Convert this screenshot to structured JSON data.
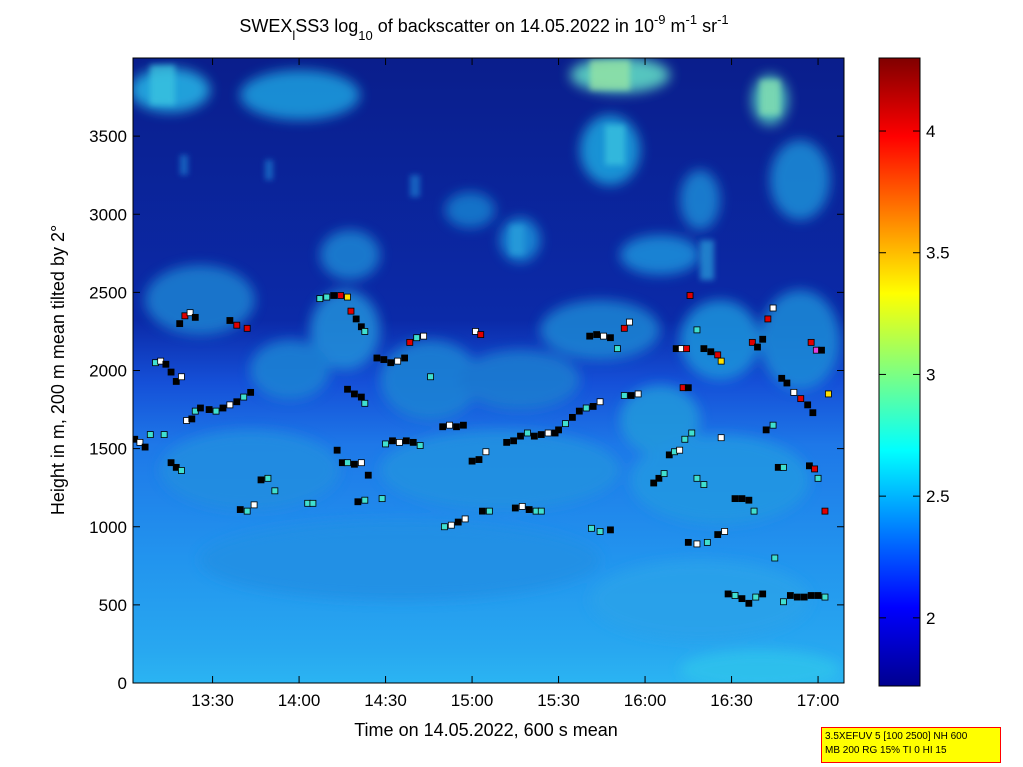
{
  "chart_data": {
    "type": "heatmap",
    "title": {
      "prefix": "SWEX",
      "sub1": "l",
      "mid1": "SS3 log",
      "sub2": "10",
      "mid2": " of backscatter on 14.05.2022 in 10",
      "sup1": "-9",
      "mid3": " m",
      "sup2": "-1",
      "mid4": " sr",
      "sup3": "-1"
    },
    "xlabel": "Time on 14.05.2022, 600 s mean",
    "ylabel": "Height in m, 200 m mean tilted by 2°",
    "x_ticks": [
      "13:30",
      "14:00",
      "14:30",
      "15:00",
      "15:30",
      "16:00",
      "16:30",
      "17:00"
    ],
    "x_tick_hours": [
      13.5,
      14.0,
      14.5,
      15.0,
      15.5,
      16.0,
      16.5,
      17.0
    ],
    "xlim_hours": [
      13.04,
      17.15
    ],
    "y_ticks": [
      0,
      500,
      1000,
      1500,
      2000,
      2500,
      3000,
      3500
    ],
    "ylim": [
      0,
      4000
    ],
    "colorbar": {
      "ticks": [
        2,
        2.5,
        3,
        3.5,
        4
      ],
      "labels": [
        "2",
        "2.5",
        "3",
        "3.5",
        "4"
      ],
      "range": [
        1.72,
        4.3
      ],
      "colormap": "jet"
    },
    "cloud_base_markers": [
      {
        "t": 13.05,
        "h": 1560,
        "c": "black"
      },
      {
        "t": 13.08,
        "h": 1540,
        "c": "white"
      },
      {
        "t": 13.11,
        "h": 1510,
        "c": "black"
      },
      {
        "t": 13.14,
        "h": 1590,
        "c": "cyan"
      },
      {
        "t": 13.17,
        "h": 2050,
        "c": "cyan"
      },
      {
        "t": 13.2,
        "h": 2060,
        "c": "white"
      },
      {
        "t": 13.23,
        "h": 2040,
        "c": "black"
      },
      {
        "t": 13.26,
        "h": 1990,
        "c": "black"
      },
      {
        "t": 13.29,
        "h": 1930,
        "c": "black"
      },
      {
        "t": 13.32,
        "h": 1960,
        "c": "white"
      },
      {
        "t": 13.22,
        "h": 1590,
        "c": "cyan"
      },
      {
        "t": 13.26,
        "h": 1410,
        "c": "black"
      },
      {
        "t": 13.29,
        "h": 1380,
        "c": "black"
      },
      {
        "t": 13.32,
        "h": 1360,
        "c": "cyan"
      },
      {
        "t": 13.35,
        "h": 1680,
        "c": "white"
      },
      {
        "t": 13.38,
        "h": 1690,
        "c": "black"
      },
      {
        "t": 13.4,
        "h": 1740,
        "c": "cyan"
      },
      {
        "t": 13.43,
        "h": 1760,
        "c": "black"
      },
      {
        "t": 13.31,
        "h": 2300,
        "c": "black"
      },
      {
        "t": 13.34,
        "h": 2350,
        "c": "red"
      },
      {
        "t": 13.37,
        "h": 2370,
        "c": "white"
      },
      {
        "t": 13.4,
        "h": 2340,
        "c": "black"
      },
      {
        "t": 13.48,
        "h": 1750,
        "c": "black"
      },
      {
        "t": 13.52,
        "h": 1740,
        "c": "cyan"
      },
      {
        "t": 13.56,
        "h": 1760,
        "c": "black"
      },
      {
        "t": 13.6,
        "h": 1780,
        "c": "white"
      },
      {
        "t": 13.64,
        "h": 1800,
        "c": "black"
      },
      {
        "t": 13.68,
        "h": 1830,
        "c": "cyan"
      },
      {
        "t": 13.72,
        "h": 1860,
        "c": "black"
      },
      {
        "t": 13.6,
        "h": 2320,
        "c": "black"
      },
      {
        "t": 13.64,
        "h": 2290,
        "c": "red"
      },
      {
        "t": 13.7,
        "h": 2270,
        "c": "red"
      },
      {
        "t": 13.66,
        "h": 1110,
        "c": "black"
      },
      {
        "t": 13.7,
        "h": 1100,
        "c": "cyan"
      },
      {
        "t": 13.74,
        "h": 1140,
        "c": "white"
      },
      {
        "t": 13.78,
        "h": 1300,
        "c": "black"
      },
      {
        "t": 13.82,
        "h": 1310,
        "c": "cyan"
      },
      {
        "t": 13.86,
        "h": 1230,
        "c": "cyan"
      },
      {
        "t": 14.05,
        "h": 1150,
        "c": "cyan"
      },
      {
        "t": 14.08,
        "h": 1150,
        "c": "cyan"
      },
      {
        "t": 14.12,
        "h": 2460,
        "c": "cyan"
      },
      {
        "t": 14.16,
        "h": 2470,
        "c": "cyan"
      },
      {
        "t": 14.2,
        "h": 2480,
        "c": "black"
      },
      {
        "t": 14.24,
        "h": 2480,
        "c": "red"
      },
      {
        "t": 14.28,
        "h": 2470,
        "c": "yellow"
      },
      {
        "t": 14.3,
        "h": 2380,
        "c": "red"
      },
      {
        "t": 14.33,
        "h": 2330,
        "c": "black"
      },
      {
        "t": 14.36,
        "h": 2280,
        "c": "black"
      },
      {
        "t": 14.38,
        "h": 2250,
        "c": "cyan"
      },
      {
        "t": 14.22,
        "h": 1490,
        "c": "black"
      },
      {
        "t": 14.25,
        "h": 1410,
        "c": "black"
      },
      {
        "t": 14.28,
        "h": 1410,
        "c": "cyan"
      },
      {
        "t": 14.32,
        "h": 1400,
        "c": "black"
      },
      {
        "t": 14.36,
        "h": 1410,
        "c": "white"
      },
      {
        "t": 14.4,
        "h": 1330,
        "c": "black"
      },
      {
        "t": 14.28,
        "h": 1880,
        "c": "black"
      },
      {
        "t": 14.32,
        "h": 1850,
        "c": "black"
      },
      {
        "t": 14.36,
        "h": 1830,
        "c": "black"
      },
      {
        "t": 14.38,
        "h": 1790,
        "c": "cyan"
      },
      {
        "t": 14.34,
        "h": 1160,
        "c": "black"
      },
      {
        "t": 14.38,
        "h": 1170,
        "c": "cyan"
      },
      {
        "t": 14.48,
        "h": 1180,
        "c": "cyan"
      },
      {
        "t": 14.45,
        "h": 2080,
        "c": "black"
      },
      {
        "t": 14.49,
        "h": 2070,
        "c": "black"
      },
      {
        "t": 14.53,
        "h": 2050,
        "c": "black"
      },
      {
        "t": 14.57,
        "h": 2060,
        "c": "white"
      },
      {
        "t": 14.61,
        "h": 2080,
        "c": "black"
      },
      {
        "t": 14.64,
        "h": 2180,
        "c": "red"
      },
      {
        "t": 14.68,
        "h": 2210,
        "c": "cyan"
      },
      {
        "t": 14.72,
        "h": 2220,
        "c": "white"
      },
      {
        "t": 14.5,
        "h": 1530,
        "c": "cyan"
      },
      {
        "t": 14.54,
        "h": 1550,
        "c": "black"
      },
      {
        "t": 14.58,
        "h": 1540,
        "c": "white"
      },
      {
        "t": 14.62,
        "h": 1550,
        "c": "black"
      },
      {
        "t": 14.66,
        "h": 1540,
        "c": "black"
      },
      {
        "t": 14.7,
        "h": 1520,
        "c": "cyan"
      },
      {
        "t": 14.76,
        "h": 1960,
        "c": "cyan"
      },
      {
        "t": 14.83,
        "h": 1640,
        "c": "black"
      },
      {
        "t": 14.87,
        "h": 1650,
        "c": "white"
      },
      {
        "t": 14.91,
        "h": 1640,
        "c": "black"
      },
      {
        "t": 14.95,
        "h": 1650,
        "c": "black"
      },
      {
        "t": 14.84,
        "h": 1000,
        "c": "cyan"
      },
      {
        "t": 14.88,
        "h": 1010,
        "c": "white"
      },
      {
        "t": 14.92,
        "h": 1030,
        "c": "black"
      },
      {
        "t": 14.96,
        "h": 1050,
        "c": "white"
      },
      {
        "t": 15.02,
        "h": 2250,
        "c": "white"
      },
      {
        "t": 15.05,
        "h": 2230,
        "c": "red"
      },
      {
        "t": 15.0,
        "h": 1420,
        "c": "black"
      },
      {
        "t": 15.04,
        "h": 1430,
        "c": "black"
      },
      {
        "t": 15.08,
        "h": 1480,
        "c": "white"
      },
      {
        "t": 15.06,
        "h": 1100,
        "c": "black"
      },
      {
        "t": 15.1,
        "h": 1100,
        "c": "cyan"
      },
      {
        "t": 15.2,
        "h": 1540,
        "c": "black"
      },
      {
        "t": 15.24,
        "h": 1550,
        "c": "black"
      },
      {
        "t": 15.28,
        "h": 1580,
        "c": "black"
      },
      {
        "t": 15.32,
        "h": 1600,
        "c": "cyan"
      },
      {
        "t": 15.36,
        "h": 1580,
        "c": "black"
      },
      {
        "t": 15.4,
        "h": 1590,
        "c": "black"
      },
      {
        "t": 15.44,
        "h": 1600,
        "c": "white"
      },
      {
        "t": 15.48,
        "h": 1600,
        "c": "black"
      },
      {
        "t": 15.25,
        "h": 1120,
        "c": "black"
      },
      {
        "t": 15.29,
        "h": 1130,
        "c": "white"
      },
      {
        "t": 15.33,
        "h": 1110,
        "c": "black"
      },
      {
        "t": 15.37,
        "h": 1100,
        "c": "cyan"
      },
      {
        "t": 15.4,
        "h": 1100,
        "c": "cyan"
      },
      {
        "t": 15.5,
        "h": 1620,
        "c": "black"
      },
      {
        "t": 15.54,
        "h": 1660,
        "c": "cyan"
      },
      {
        "t": 15.58,
        "h": 1700,
        "c": "black"
      },
      {
        "t": 15.62,
        "h": 1740,
        "c": "black"
      },
      {
        "t": 15.66,
        "h": 1760,
        "c": "cyan"
      },
      {
        "t": 15.7,
        "h": 1770,
        "c": "black"
      },
      {
        "t": 15.74,
        "h": 1800,
        "c": "white"
      },
      {
        "t": 15.68,
        "h": 2220,
        "c": "black"
      },
      {
        "t": 15.72,
        "h": 2230,
        "c": "black"
      },
      {
        "t": 15.76,
        "h": 2220,
        "c": "white"
      },
      {
        "t": 15.8,
        "h": 2210,
        "c": "black"
      },
      {
        "t": 15.84,
        "h": 2140,
        "c": "cyan"
      },
      {
        "t": 15.88,
        "h": 2270,
        "c": "red"
      },
      {
        "t": 15.91,
        "h": 2310,
        "c": "white"
      },
      {
        "t": 15.69,
        "h": 990,
        "c": "cyan"
      },
      {
        "t": 15.74,
        "h": 970,
        "c": "cyan"
      },
      {
        "t": 15.8,
        "h": 980,
        "c": "black"
      },
      {
        "t": 15.88,
        "h": 1840,
        "c": "cyan"
      },
      {
        "t": 15.92,
        "h": 1840,
        "c": "black"
      },
      {
        "t": 15.96,
        "h": 1850,
        "c": "white"
      },
      {
        "t": 16.05,
        "h": 1280,
        "c": "black"
      },
      {
        "t": 16.08,
        "h": 1310,
        "c": "black"
      },
      {
        "t": 16.11,
        "h": 1340,
        "c": "cyan"
      },
      {
        "t": 16.14,
        "h": 1460,
        "c": "black"
      },
      {
        "t": 16.17,
        "h": 1480,
        "c": "cyan"
      },
      {
        "t": 16.2,
        "h": 1490,
        "c": "white"
      },
      {
        "t": 16.23,
        "h": 1560,
        "c": "cyan"
      },
      {
        "t": 16.27,
        "h": 1600,
        "c": "cyan"
      },
      {
        "t": 16.18,
        "h": 2140,
        "c": "black"
      },
      {
        "t": 16.21,
        "h": 2140,
        "c": "white"
      },
      {
        "t": 16.24,
        "h": 2140,
        "c": "red"
      },
      {
        "t": 16.22,
        "h": 1890,
        "c": "red"
      },
      {
        "t": 16.25,
        "h": 1890,
        "c": "black"
      },
      {
        "t": 16.26,
        "h": 2480,
        "c": "red"
      },
      {
        "t": 16.3,
        "h": 2260,
        "c": "cyan"
      },
      {
        "t": 16.34,
        "h": 2140,
        "c": "black"
      },
      {
        "t": 16.38,
        "h": 2120,
        "c": "black"
      },
      {
        "t": 16.42,
        "h": 2100,
        "c": "red"
      },
      {
        "t": 16.44,
        "h": 2060,
        "c": "yellow"
      },
      {
        "t": 16.3,
        "h": 1310,
        "c": "cyan"
      },
      {
        "t": 16.34,
        "h": 1270,
        "c": "cyan"
      },
      {
        "t": 16.25,
        "h": 900,
        "c": "black"
      },
      {
        "t": 16.3,
        "h": 890,
        "c": "white"
      },
      {
        "t": 16.36,
        "h": 900,
        "c": "cyan"
      },
      {
        "t": 16.42,
        "h": 950,
        "c": "black"
      },
      {
        "t": 16.46,
        "h": 970,
        "c": "white"
      },
      {
        "t": 16.44,
        "h": 1570,
        "c": "white"
      },
      {
        "t": 16.52,
        "h": 1180,
        "c": "black"
      },
      {
        "t": 16.56,
        "h": 1180,
        "c": "black"
      },
      {
        "t": 16.6,
        "h": 1170,
        "c": "black"
      },
      {
        "t": 16.63,
        "h": 1100,
        "c": "cyan"
      },
      {
        "t": 16.48,
        "h": 570,
        "c": "black"
      },
      {
        "t": 16.52,
        "h": 560,
        "c": "cyan"
      },
      {
        "t": 16.56,
        "h": 540,
        "c": "black"
      },
      {
        "t": 16.6,
        "h": 510,
        "c": "black"
      },
      {
        "t": 16.64,
        "h": 550,
        "c": "cyan"
      },
      {
        "t": 16.68,
        "h": 570,
        "c": "black"
      },
      {
        "t": 16.62,
        "h": 2180,
        "c": "red"
      },
      {
        "t": 16.65,
        "h": 2150,
        "c": "black"
      },
      {
        "t": 16.68,
        "h": 2200,
        "c": "black"
      },
      {
        "t": 16.71,
        "h": 2330,
        "c": "red"
      },
      {
        "t": 16.74,
        "h": 2400,
        "c": "white"
      },
      {
        "t": 16.7,
        "h": 1620,
        "c": "black"
      },
      {
        "t": 16.74,
        "h": 1650,
        "c": "cyan"
      },
      {
        "t": 16.77,
        "h": 1380,
        "c": "black"
      },
      {
        "t": 16.8,
        "h": 1380,
        "c": "cyan"
      },
      {
        "t": 16.75,
        "h": 800,
        "c": "cyan"
      },
      {
        "t": 16.8,
        "h": 520,
        "c": "cyan"
      },
      {
        "t": 16.84,
        "h": 560,
        "c": "black"
      },
      {
        "t": 16.88,
        "h": 550,
        "c": "black"
      },
      {
        "t": 16.92,
        "h": 550,
        "c": "black"
      },
      {
        "t": 16.96,
        "h": 560,
        "c": "black"
      },
      {
        "t": 17.0,
        "h": 560,
        "c": "black"
      },
      {
        "t": 17.04,
        "h": 550,
        "c": "cyan"
      },
      {
        "t": 16.79,
        "h": 1950,
        "c": "black"
      },
      {
        "t": 16.82,
        "h": 1920,
        "c": "black"
      },
      {
        "t": 16.86,
        "h": 1860,
        "c": "white"
      },
      {
        "t": 16.9,
        "h": 1820,
        "c": "red"
      },
      {
        "t": 16.94,
        "h": 1780,
        "c": "black"
      },
      {
        "t": 16.97,
        "h": 1730,
        "c": "black"
      },
      {
        "t": 16.95,
        "h": 1390,
        "c": "black"
      },
      {
        "t": 16.98,
        "h": 1370,
        "c": "red"
      },
      {
        "t": 17.0,
        "h": 1310,
        "c": "cyan"
      },
      {
        "t": 16.96,
        "h": 2180,
        "c": "red"
      },
      {
        "t": 16.99,
        "h": 2130,
        "c": "magenta"
      },
      {
        "t": 17.02,
        "h": 2130,
        "c": "black"
      },
      {
        "t": 17.04,
        "h": 1100,
        "c": "red"
      },
      {
        "t": 17.06,
        "h": 1850,
        "c": "yellow"
      }
    ]
  },
  "info_box": {
    "line1": "3.5XEFUV 5 [100 2500] NH 600",
    "line2": "MB 200 RG 15% TI 0 HI 15"
  }
}
